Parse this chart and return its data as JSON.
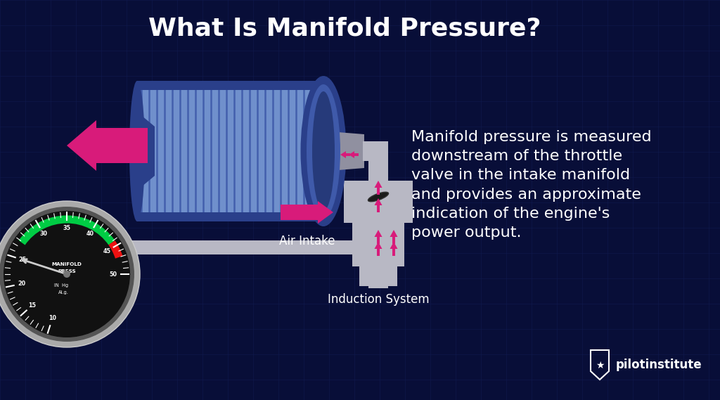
{
  "title": "What Is Manifold Pressure?",
  "title_color": "#ffffff",
  "title_fontsize": 26,
  "bg_color": "#080e38",
  "grid_color": "#121b52",
  "description": "Manifold pressure is measured\ndownstream of the throttle\nvalve in the intake manifold\nand provides an approximate\nindication of the engine's\npower output.",
  "desc_color": "#ffffff",
  "desc_fontsize": 16,
  "air_intake_label": "Air Intake",
  "induction_label": "Induction System",
  "label_color": "#ffffff",
  "label_fontsize": 12,
  "arrow_color": "#d81b7a",
  "gauge_bg": "#111111",
  "gauge_outer_ring": "#888888",
  "gauge_inner_ring": "#444444",
  "gauge_green": "#00cc44",
  "gauge_red": "#ee1111",
  "gauge_needle_color": "#cccccc",
  "pilotinstitute_color": "#ffffff",
  "cyl_dark": "#2a3f8a",
  "cyl_mid": "#3f5aaa",
  "cyl_light": "#7090cc",
  "cyl_inner": "#263a7a",
  "throttle_gray": "#b8b8c4",
  "pipe_gray": "#b8b8c4",
  "valve_dark": "#1a1a1a",
  "funnel_gray": "#9090a0"
}
